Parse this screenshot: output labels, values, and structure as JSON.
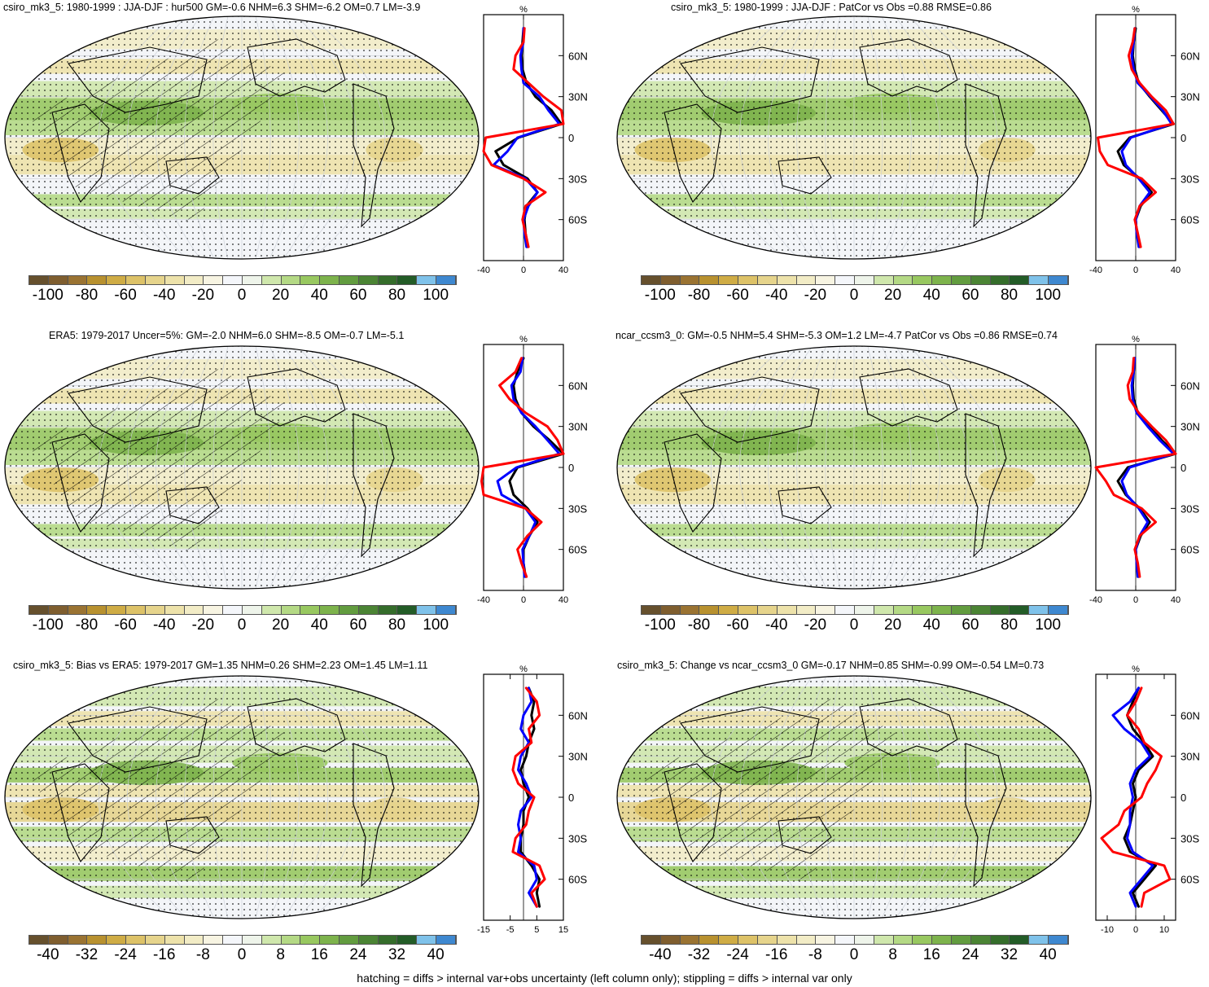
{
  "colorbar_colors": [
    "#66502d",
    "#7f5e2f",
    "#9a7332",
    "#b8912f",
    "#cfac45",
    "#ddc268",
    "#e6d48c",
    "#ede2aa",
    "#f2ecc6",
    "#f7f4e2",
    "#f4f6fa",
    "#eef4ea",
    "#cfe7ac",
    "#b4d985",
    "#98c860",
    "#7db34c",
    "#629c3f",
    "#4b8434",
    "#356d2b",
    "#235c27",
    "#7fc2ea",
    "#3e88d0"
  ],
  "footer_note": "hatching = diffs > internal var+obs uncertainty (left column only); stippling = diffs > internal var only",
  "panels": [
    {
      "id": "top-left",
      "title": "csiro_mk3_5: 1980-1999 : JJA-DJF : hur500 GM=-0.6 NHM=6.3 SHM=-6.2 OM=0.7 LM=-3.9",
      "colorbar_labels": [
        "-100",
        "-80",
        "-60",
        "-40",
        "-20",
        "0",
        "20",
        "40",
        "60",
        "80",
        "100"
      ],
      "profile_axis_label": "%",
      "profile_xticks": [
        "-40",
        "0",
        "40"
      ],
      "profile_lat_labels": [
        "60N",
        "30N",
        "0",
        "30S",
        "60S"
      ]
    },
    {
      "id": "top-right",
      "title": "csiro_mk3_5: 1980-1999 : JJA-DJF : PatCor vs Obs =0.88 RMSE=0.86",
      "colorbar_labels": [
        "-100",
        "-80",
        "-60",
        "-40",
        "-20",
        "0",
        "20",
        "40",
        "60",
        "80",
        "100"
      ],
      "profile_axis_label": "%",
      "profile_xticks": [
        "-40",
        "0",
        "40"
      ],
      "profile_lat_labels": [
        "60N",
        "30N",
        "0",
        "30S",
        "60S"
      ]
    },
    {
      "id": "middle-left",
      "title": "ERA5: 1979-2017 Uncer=5%: GM=-2.0 NHM=6.0 SHM=-8.5 OM=-0.7 LM=-5.1",
      "colorbar_labels": [
        "-100",
        "-80",
        "-60",
        "-40",
        "-20",
        "0",
        "20",
        "40",
        "60",
        "80",
        "100"
      ],
      "profile_axis_label": "%",
      "profile_xticks": [
        "-40",
        "0",
        "40"
      ],
      "profile_lat_labels": [
        "60N",
        "30N",
        "0",
        "30S",
        "60S"
      ]
    },
    {
      "id": "middle-right",
      "title": "ncar_ccsm3_0: GM=-0.5 NHM=5.4 SHM=-5.3 OM=1.2 LM=-4.7 PatCor vs Obs =0.86 RMSE=0.74",
      "colorbar_labels": [
        "-100",
        "-80",
        "-60",
        "-40",
        "-20",
        "0",
        "20",
        "40",
        "60",
        "80",
        "100"
      ],
      "profile_axis_label": "%",
      "profile_xticks": [
        "-40",
        "0",
        "40"
      ],
      "profile_lat_labels": [
        "60N",
        "30N",
        "0",
        "30S",
        "60S"
      ]
    },
    {
      "id": "bottom-left",
      "title": "csiro_mk3_5: Bias vs ERA5: 1979-2017 GM=1.35 NHM=0.26 SHM=2.23 OM=1.45 LM=1.11",
      "colorbar_labels": [
        "-40",
        "-32",
        "-24",
        "-16",
        "-8",
        "0",
        "8",
        "16",
        "24",
        "32",
        "40"
      ],
      "profile_axis_label": "%",
      "profile_xticks": [
        "-15",
        "-5",
        "5",
        "15"
      ],
      "profile_lat_labels": [
        "60N",
        "30N",
        "0",
        "30S",
        "60S"
      ]
    },
    {
      "id": "bottom-right",
      "title": "csiro_mk3_5: Change vs ncar_ccsm3_0 GM=-0.17 NHM=0.85 SHM=-0.99 OM=-0.54 LM=0.73",
      "colorbar_labels": [
        "-40",
        "-32",
        "-24",
        "-16",
        "-8",
        "0",
        "8",
        "16",
        "24",
        "32",
        "40"
      ],
      "profile_axis_label": "%",
      "profile_xticks": [
        "-10",
        "0",
        "10"
      ],
      "profile_lat_labels": [
        "60N",
        "30N",
        "0",
        "30S",
        "60S"
      ]
    }
  ],
  "chart_data": [
    {
      "type": "line",
      "panel": "top-left",
      "title": "",
      "xlabel": "%",
      "ylabel": "",
      "xlim": [
        -40,
        40
      ],
      "ylim": [
        -90,
        90
      ],
      "lat": [
        80,
        70,
        60,
        50,
        40,
        30,
        20,
        10,
        0,
        -10,
        -20,
        -30,
        -40,
        -50,
        -60,
        -70,
        -80
      ],
      "series": [
        {
          "color": "#000000",
          "values": [
            0,
            -1,
            -2,
            -1,
            3,
            12,
            28,
            38,
            -5,
            -28,
            -20,
            4,
            14,
            3,
            1,
            2,
            4
          ]
        },
        {
          "color": "#0000ff",
          "values": [
            0,
            0,
            -3,
            -2,
            0,
            16,
            25,
            36,
            -6,
            -16,
            -30,
            2,
            14,
            5,
            0,
            1,
            3
          ]
        },
        {
          "color": "#ff0000",
          "values": [
            1,
            0,
            -8,
            -10,
            5,
            20,
            38,
            40,
            -38,
            -40,
            -32,
            0,
            22,
            2,
            -1,
            2,
            5
          ]
        }
      ]
    },
    {
      "type": "line",
      "panel": "top-right",
      "title": "",
      "xlabel": "%",
      "ylabel": "",
      "xlim": [
        -40,
        40
      ],
      "ylim": [
        -90,
        90
      ],
      "lat": [
        80,
        70,
        60,
        50,
        40,
        30,
        20,
        10,
        0,
        -10,
        -20,
        -30,
        -40,
        -50,
        -60,
        -70,
        -80
      ],
      "series": [
        {
          "color": "#000000",
          "values": [
            0,
            -2,
            -3,
            -1,
            3,
            14,
            26,
            38,
            -6,
            -18,
            -12,
            4,
            16,
            5,
            0,
            1,
            4
          ]
        },
        {
          "color": "#0000ff",
          "values": [
            -1,
            -2,
            -4,
            -2,
            2,
            15,
            27,
            36,
            -5,
            -14,
            -10,
            3,
            14,
            4,
            0,
            1,
            3
          ]
        },
        {
          "color": "#ff0000",
          "values": [
            -1,
            -3,
            -7,
            -4,
            4,
            16,
            30,
            38,
            -38,
            -36,
            -28,
            6,
            20,
            4,
            -1,
            2,
            5
          ]
        }
      ]
    },
    {
      "type": "line",
      "panel": "middle-left",
      "title": "",
      "xlabel": "%",
      "ylabel": "",
      "xlim": [
        -40,
        40
      ],
      "ylim": [
        -90,
        90
      ],
      "lat": [
        80,
        70,
        60,
        50,
        40,
        30,
        20,
        10,
        0,
        -10,
        -20,
        -30,
        -40,
        -50,
        -60,
        -70,
        -80
      ],
      "series": [
        {
          "color": "#000000",
          "values": [
            0,
            -6,
            -10,
            -8,
            -2,
            10,
            26,
            40,
            -6,
            -14,
            -10,
            4,
            14,
            6,
            0,
            0,
            2
          ]
        },
        {
          "color": "#0000ff",
          "values": [
            -1,
            -3,
            -12,
            -10,
            -2,
            12,
            24,
            36,
            -7,
            -26,
            -22,
            2,
            12,
            6,
            -1,
            0,
            1
          ]
        },
        {
          "color": "#ff0000",
          "values": [
            -2,
            -8,
            -24,
            -14,
            2,
            24,
            34,
            40,
            -40,
            -42,
            -40,
            2,
            18,
            4,
            -6,
            -2,
            3
          ]
        }
      ]
    },
    {
      "type": "line",
      "panel": "middle-right",
      "title": "",
      "xlabel": "%",
      "ylabel": "",
      "xlim": [
        -40,
        40
      ],
      "ylim": [
        -90,
        90
      ],
      "lat": [
        80,
        70,
        60,
        50,
        40,
        30,
        20,
        10,
        0,
        -10,
        -20,
        -30,
        -40,
        -50,
        -60,
        -70,
        -80
      ],
      "series": [
        {
          "color": "#000000",
          "values": [
            -1,
            -2,
            -3,
            -2,
            2,
            14,
            26,
            40,
            -8,
            -18,
            -10,
            4,
            14,
            5,
            0,
            1,
            3
          ]
        },
        {
          "color": "#0000ff",
          "values": [
            -1,
            -2,
            -4,
            -3,
            1,
            12,
            24,
            38,
            -6,
            -14,
            -9,
            3,
            12,
            4,
            0,
            1,
            2
          ]
        },
        {
          "color": "#ff0000",
          "values": [
            -2,
            -3,
            -8,
            -6,
            3,
            16,
            30,
            40,
            -40,
            -30,
            -22,
            6,
            20,
            4,
            -1,
            2,
            4
          ]
        }
      ]
    },
    {
      "type": "line",
      "panel": "bottom-left",
      "title": "",
      "xlabel": "%",
      "ylabel": "",
      "xlim": [
        -15,
        15
      ],
      "ylim": [
        -90,
        90
      ],
      "lat": [
        80,
        70,
        60,
        50,
        40,
        30,
        20,
        10,
        0,
        -10,
        -20,
        -30,
        -40,
        -50,
        -60,
        -70,
        -80
      ],
      "series": [
        {
          "color": "#000000",
          "values": [
            2,
            4,
            3,
            4,
            2,
            1,
            -1,
            0,
            2,
            0,
            0,
            -1,
            -1,
            3,
            6,
            5,
            6
          ]
        },
        {
          "color": "#0000ff",
          "values": [
            2,
            3,
            0,
            -1,
            2,
            -1,
            -2,
            1,
            3,
            -1,
            -2,
            -1,
            -2,
            4,
            5,
            2,
            5
          ]
        },
        {
          "color": "#ff0000",
          "values": [
            1,
            5,
            6,
            2,
            3,
            -3,
            -4,
            -2,
            4,
            2,
            1,
            -3,
            -4,
            6,
            8,
            3,
            5
          ]
        }
      ]
    },
    {
      "type": "line",
      "panel": "bottom-right",
      "title": "",
      "xlabel": "%",
      "ylabel": "",
      "xlim": [
        -14,
        14
      ],
      "ylim": [
        -90,
        90
      ],
      "lat": [
        80,
        70,
        60,
        50,
        40,
        30,
        20,
        10,
        0,
        -10,
        -20,
        -30,
        -40,
        -50,
        -60,
        -70,
        -80
      ],
      "series": [
        {
          "color": "#000000",
          "values": [
            1,
            -1,
            -3,
            -1,
            3,
            6,
            1,
            -1,
            0,
            -1,
            -2,
            -4,
            -2,
            7,
            3,
            -1,
            1
          ]
        },
        {
          "color": "#0000ff",
          "values": [
            1,
            -2,
            -8,
            -4,
            2,
            5,
            0,
            -2,
            -1,
            -2,
            -2,
            -3,
            -1,
            6,
            2,
            -2,
            0
          ]
        },
        {
          "color": "#ff0000",
          "values": [
            2,
            0,
            -3,
            1,
            3,
            9,
            7,
            4,
            2,
            -4,
            -6,
            -12,
            -8,
            10,
            12,
            3,
            2
          ]
        }
      ]
    }
  ]
}
